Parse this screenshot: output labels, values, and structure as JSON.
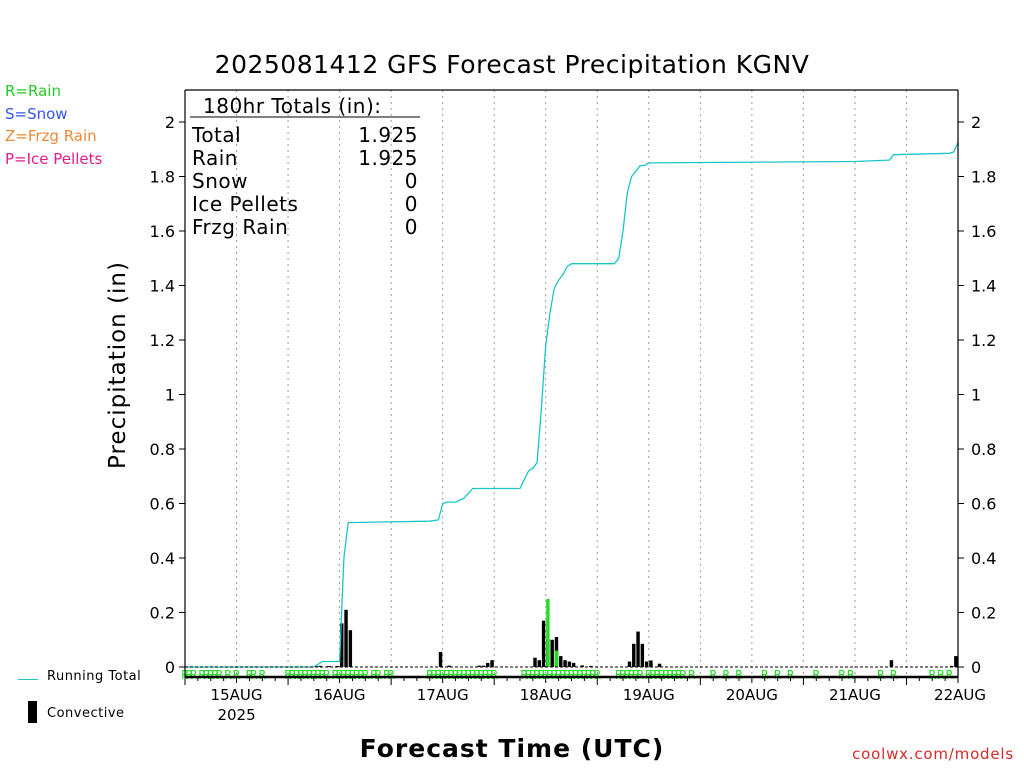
{
  "legend": [
    {
      "text": "R=Rain",
      "color": "#22cc22"
    },
    {
      "text": "S=Snow",
      "color": "#3355ee"
    },
    {
      "text": "Z=Frzg Rain",
      "color": "#ee8833"
    },
    {
      "text": "P=Ice Pellets",
      "color": "#e0208c"
    }
  ],
  "bottom_legend": {
    "line_label": "Running Total",
    "bar_label": "Convective"
  },
  "credit": "coolwx.com/models",
  "totals": {
    "header": "180hr Totals (in):",
    "rows": [
      {
        "label": "Total",
        "value": "1.925"
      },
      {
        "label": "Rain",
        "value": "1.925"
      },
      {
        "label": "Snow",
        "value": "0"
      },
      {
        "label": "Ice Pellets",
        "value": "0"
      },
      {
        "label": "Frzg Rain",
        "value": "0"
      }
    ]
  },
  "colors": {
    "running_total": "#19c7c7",
    "convective": "#000000",
    "rain_bar": "#22dd22",
    "ptype_marker": "#22dd22"
  },
  "chart_data": {
    "type": "bar",
    "title": "2025081412 GFS Forecast Precipitation KGNV",
    "xlabel": "Forecast Time (UTC)",
    "ylabel": "Precipitation (in)",
    "ylim": [
      0,
      2.1
    ],
    "xlim_hours": [
      0,
      180
    ],
    "yticks": [
      0,
      0.2,
      0.4,
      0.6,
      0.8,
      1,
      1.2,
      1.4,
      1.6,
      1.8,
      2
    ],
    "ytick_labels": [
      "0",
      "0.2",
      "0.4",
      "0.6",
      "0.8",
      "1",
      "1.2",
      "1.4",
      "1.6",
      "1.8",
      "2"
    ],
    "date_labels": [
      {
        "hour": 12,
        "label": "15AUG",
        "sub": "2025"
      },
      {
        "hour": 36,
        "label": "16AUG"
      },
      {
        "hour": 60,
        "label": "17AUG"
      },
      {
        "hour": 84,
        "label": "18AUG"
      },
      {
        "hour": 108,
        "label": "19AUG"
      },
      {
        "hour": 132,
        "label": "20AUG"
      },
      {
        "hour": 156,
        "label": "21AUG"
      },
      {
        "hour": 180,
        "label": "22AUG"
      }
    ],
    "grid": "dotted vertical at 00Z",
    "series": [
      {
        "name": "Running Total",
        "type": "line",
        "points": [
          [
            0,
            0
          ],
          [
            30,
            0
          ],
          [
            31,
            0.01
          ],
          [
            32,
            0.02
          ],
          [
            36,
            0.02
          ],
          [
            37,
            0.4
          ],
          [
            38,
            0.53
          ],
          [
            57,
            0.535
          ],
          [
            59,
            0.54
          ],
          [
            60,
            0.6
          ],
          [
            61,
            0.605
          ],
          [
            63,
            0.605
          ],
          [
            65,
            0.62
          ],
          [
            67,
            0.655
          ],
          [
            78,
            0.655
          ],
          [
            80,
            0.72
          ],
          [
            81,
            0.73
          ],
          [
            82,
            0.75
          ],
          [
            83,
            0.95
          ],
          [
            84,
            1.18
          ],
          [
            85,
            1.3
          ],
          [
            86,
            1.39
          ],
          [
            87,
            1.42
          ],
          [
            88,
            1.44
          ],
          [
            89,
            1.47
          ],
          [
            90,
            1.48
          ],
          [
            100,
            1.48
          ],
          [
            101,
            1.5
          ],
          [
            102,
            1.6
          ],
          [
            103,
            1.74
          ],
          [
            104,
            1.8
          ],
          [
            106,
            1.84
          ],
          [
            107,
            1.84
          ],
          [
            108,
            1.85
          ],
          [
            156,
            1.855
          ],
          [
            164,
            1.86
          ],
          [
            165,
            1.88
          ],
          [
            178,
            1.885
          ],
          [
            179,
            1.89
          ],
          [
            180,
            1.925
          ]
        ]
      },
      {
        "name": "Convective",
        "type": "bar",
        "bars": [
          [
            30.5,
            0.004
          ],
          [
            31.5,
            0.004
          ],
          [
            33.5,
            0.004
          ],
          [
            35.5,
            0.004
          ],
          [
            36.5,
            0.16
          ],
          [
            37.5,
            0.21
          ],
          [
            38.5,
            0.135
          ],
          [
            59.5,
            0.055
          ],
          [
            61.5,
            0.005
          ],
          [
            68.5,
            0.005
          ],
          [
            69.5,
            0.005
          ],
          [
            70.5,
            0.015
          ],
          [
            71.5,
            0.025
          ],
          [
            81.5,
            0.034
          ],
          [
            82.5,
            0.025
          ],
          [
            83.5,
            0.17
          ],
          [
            84.5,
            0.1
          ],
          [
            85.5,
            0.1
          ],
          [
            86.5,
            0.11
          ],
          [
            87.5,
            0.04
          ],
          [
            88.5,
            0.025
          ],
          [
            89.5,
            0.02
          ],
          [
            90.5,
            0.015
          ],
          [
            92.5,
            0.006
          ],
          [
            94.5,
            0.004
          ],
          [
            103.5,
            0.02
          ],
          [
            104.5,
            0.085
          ],
          [
            105.5,
            0.13
          ],
          [
            106.5,
            0.085
          ],
          [
            107.5,
            0.02
          ],
          [
            108.5,
            0.024
          ],
          [
            110.5,
            0.012
          ],
          [
            164.5,
            0.025
          ],
          [
            178.5,
            0.004
          ],
          [
            179.5,
            0.04
          ]
        ]
      },
      {
        "name": "Rain",
        "type": "bar",
        "bars": [
          [
            84.5,
            0.25
          ],
          [
            86.5,
            0.06
          ]
        ]
      }
    ],
    "ptype_markers": {
      "label": "R",
      "hours": [
        0,
        1,
        2,
        4,
        5,
        6,
        7,
        8,
        10,
        12,
        15,
        16,
        18,
        24,
        25,
        26,
        27,
        28,
        29,
        30,
        31,
        32,
        33,
        35,
        36,
        37,
        38,
        39,
        40,
        41,
        42,
        44,
        45,
        47,
        48,
        57,
        58,
        59,
        60,
        61,
        62,
        63,
        64,
        65,
        66,
        67,
        68,
        69,
        70,
        71,
        72,
        79,
        80,
        81,
        82,
        83,
        84,
        85,
        86,
        87,
        88,
        89,
        90,
        91,
        92,
        93,
        94,
        95,
        96,
        101,
        102,
        103,
        104,
        105,
        106,
        108,
        109,
        110,
        111,
        112,
        113,
        114,
        115,
        116,
        118,
        123,
        126,
        129,
        135,
        138,
        141,
        147,
        153,
        155,
        162,
        165,
        174,
        176,
        178
      ]
    }
  }
}
